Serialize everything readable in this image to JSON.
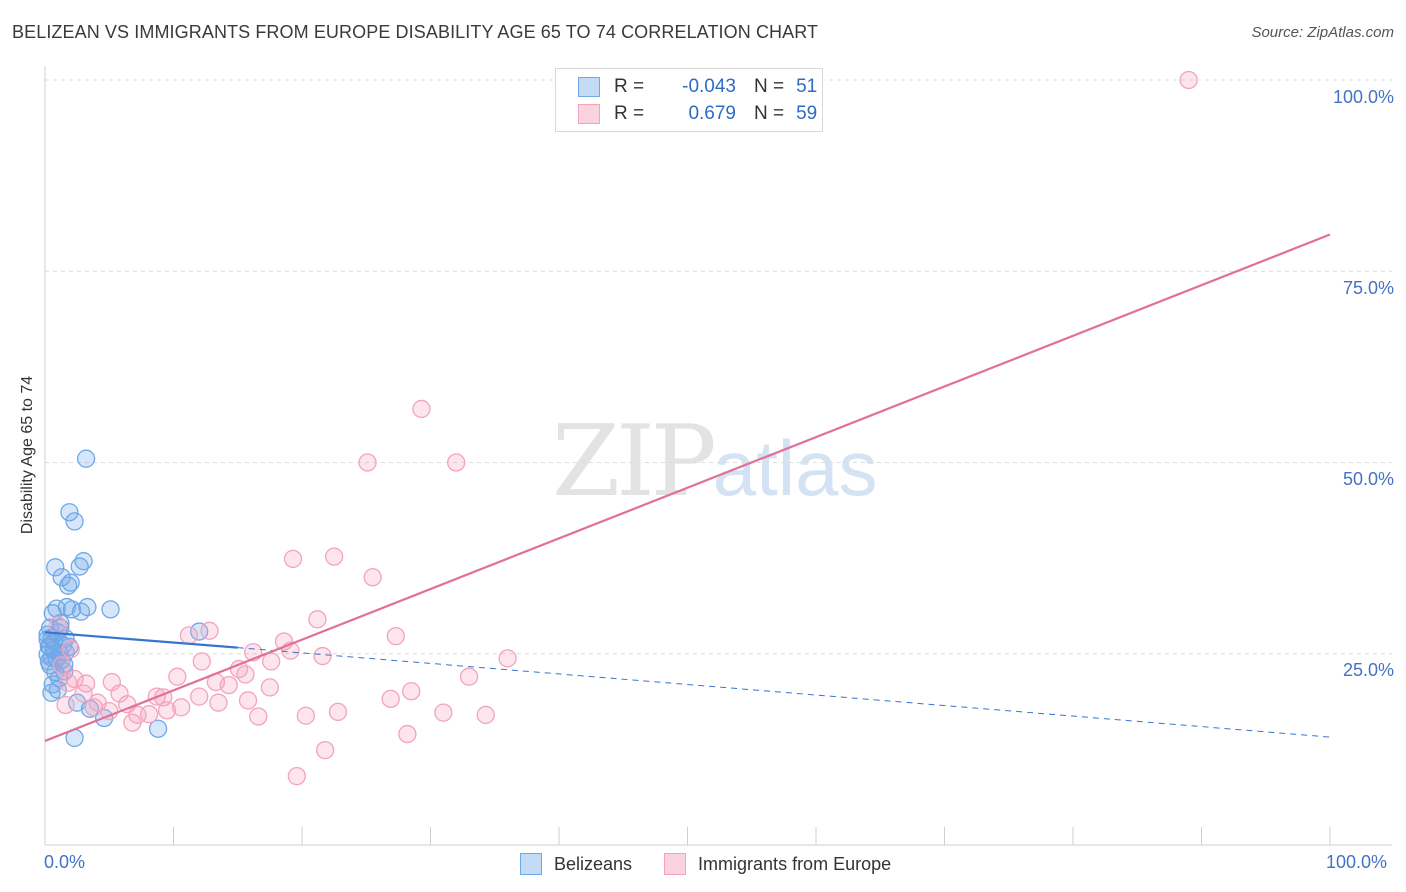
{
  "title": "BELIZEAN VS IMMIGRANTS FROM EUROPE DISABILITY AGE 65 TO 74 CORRELATION CHART",
  "source": "Source: ZipAtlas.com",
  "watermark": {
    "zip": "ZIP",
    "atlas": "atlas"
  },
  "legend": {
    "rows": [
      {
        "r_label": "R =",
        "r_value": "-0.043",
        "n_label": "N =",
        "n_value": "51"
      },
      {
        "r_label": "R =",
        "r_value": "0.679",
        "n_label": "N =",
        "n_value": "59"
      }
    ]
  },
  "chart_data": {
    "type": "scatter",
    "title": "BELIZEAN VS IMMIGRANTS FROM EUROPE DISABILITY AGE 65 TO 74 CORRELATION CHART",
    "xlabel": "",
    "ylabel": "Disability Age 65 to 74",
    "xlim": [
      0,
      100
    ],
    "ylim": [
      0,
      100
    ],
    "x_tick_labels": [
      "0.0%",
      "100.0%"
    ],
    "y_tick_labels": [
      "25.0%",
      "50.0%",
      "75.0%",
      "100.0%"
    ],
    "y_ticks": [
      25,
      50,
      75,
      100
    ],
    "series": [
      {
        "name": "Belizeans",
        "color": "#6fa8e8",
        "line_color": "#3575d0",
        "R": -0.043,
        "N": 51,
        "trend": {
          "solid": [
            [
              0,
              27.8
            ],
            [
              15,
              25.8
            ]
          ],
          "dashed": [
            [
              15,
              25.8
            ],
            [
              100,
              14.1
            ]
          ]
        },
        "points": [
          [
            3.2,
            50.5
          ],
          [
            1.9,
            43.5
          ],
          [
            2.3,
            42.3
          ],
          [
            3.0,
            37.1
          ],
          [
            2.7,
            36.4
          ],
          [
            0.8,
            36.3
          ],
          [
            1.3,
            35.0
          ],
          [
            2.0,
            34.3
          ],
          [
            1.8,
            33.9
          ],
          [
            5.1,
            30.8
          ],
          [
            3.3,
            31.1
          ],
          [
            0.9,
            30.9
          ],
          [
            1.7,
            31.1
          ],
          [
            2.1,
            30.8
          ],
          [
            0.6,
            30.3
          ],
          [
            1.2,
            28.4
          ],
          [
            0.4,
            28.4
          ],
          [
            1.0,
            27.8
          ],
          [
            0.5,
            27.1
          ],
          [
            0.2,
            26.9
          ],
          [
            1.6,
            27.0
          ],
          [
            12.0,
            27.9
          ],
          [
            0.3,
            26.0
          ],
          [
            1.4,
            26.1
          ],
          [
            1.9,
            25.9
          ],
          [
            0.7,
            25.5
          ],
          [
            1.1,
            25.1
          ],
          [
            0.2,
            24.9
          ],
          [
            1.6,
            25.2
          ],
          [
            0.5,
            24.5
          ],
          [
            0.9,
            24.3
          ],
          [
            0.3,
            24.0
          ],
          [
            1.3,
            24.2
          ],
          [
            0.4,
            23.5
          ],
          [
            1.5,
            22.7
          ],
          [
            0.8,
            22.6
          ],
          [
            1.1,
            21.8
          ],
          [
            0.6,
            21.0
          ],
          [
            1.0,
            20.3
          ],
          [
            0.5,
            19.9
          ],
          [
            2.5,
            18.6
          ],
          [
            3.5,
            17.8
          ],
          [
            4.6,
            16.6
          ],
          [
            8.8,
            15.2
          ],
          [
            2.3,
            14.0
          ],
          [
            0.2,
            27.5
          ],
          [
            1.2,
            29.0
          ],
          [
            0.7,
            26.6
          ],
          [
            1.5,
            23.6
          ],
          [
            0.4,
            25.8
          ],
          [
            2.8,
            30.5
          ]
        ]
      },
      {
        "name": "Immigrants from Europe",
        "color": "#f4a3bd",
        "line_color": "#e07099",
        "R": 0.679,
        "N": 59,
        "trend": {
          "solid": [
            [
              0,
              13.6
            ],
            [
              100,
              79.8
            ]
          ]
        },
        "points": [
          [
            89.0,
            100.0
          ],
          [
            29.3,
            57.0
          ],
          [
            25.1,
            50.0
          ],
          [
            32.0,
            50.0
          ],
          [
            22.5,
            37.7
          ],
          [
            19.3,
            37.4
          ],
          [
            25.5,
            35.0
          ],
          [
            21.2,
            29.5
          ],
          [
            12.8,
            28.0
          ],
          [
            11.2,
            27.4
          ],
          [
            27.3,
            27.3
          ],
          [
            18.6,
            26.6
          ],
          [
            19.1,
            25.4
          ],
          [
            16.2,
            25.2
          ],
          [
            21.6,
            24.7
          ],
          [
            36.0,
            24.4
          ],
          [
            17.6,
            24.0
          ],
          [
            12.2,
            24.0
          ],
          [
            15.1,
            23.0
          ],
          [
            1.3,
            23.5
          ],
          [
            15.6,
            22.3
          ],
          [
            10.3,
            22.0
          ],
          [
            33.0,
            22.0
          ],
          [
            2.3,
            21.7
          ],
          [
            1.8,
            21.2
          ],
          [
            13.3,
            21.3
          ],
          [
            3.2,
            21.1
          ],
          [
            5.2,
            21.3
          ],
          [
            14.3,
            20.9
          ],
          [
            17.5,
            20.6
          ],
          [
            28.5,
            20.1
          ],
          [
            5.8,
            19.8
          ],
          [
            8.7,
            19.4
          ],
          [
            12.0,
            19.4
          ],
          [
            9.2,
            19.3
          ],
          [
            3.0,
            19.8
          ],
          [
            26.9,
            19.1
          ],
          [
            15.8,
            18.9
          ],
          [
            13.5,
            18.6
          ],
          [
            1.6,
            18.3
          ],
          [
            4.1,
            18.6
          ],
          [
            6.4,
            18.4
          ],
          [
            10.6,
            18.0
          ],
          [
            3.8,
            18.0
          ],
          [
            9.5,
            17.6
          ],
          [
            5.0,
            17.5
          ],
          [
            8.1,
            17.1
          ],
          [
            7.2,
            17.0
          ],
          [
            22.8,
            17.4
          ],
          [
            31.0,
            17.3
          ],
          [
            34.3,
            17.0
          ],
          [
            20.3,
            16.9
          ],
          [
            16.6,
            16.8
          ],
          [
            6.8,
            16.0
          ],
          [
            28.2,
            14.5
          ],
          [
            21.8,
            12.4
          ],
          [
            19.6,
            9.0
          ],
          [
            1.0,
            28.7
          ],
          [
            2.0,
            25.6
          ]
        ]
      }
    ],
    "legend_position": "top-center",
    "bottom_legend": [
      "Belizeans",
      "Immigrants from Europe"
    ],
    "grid": true
  }
}
